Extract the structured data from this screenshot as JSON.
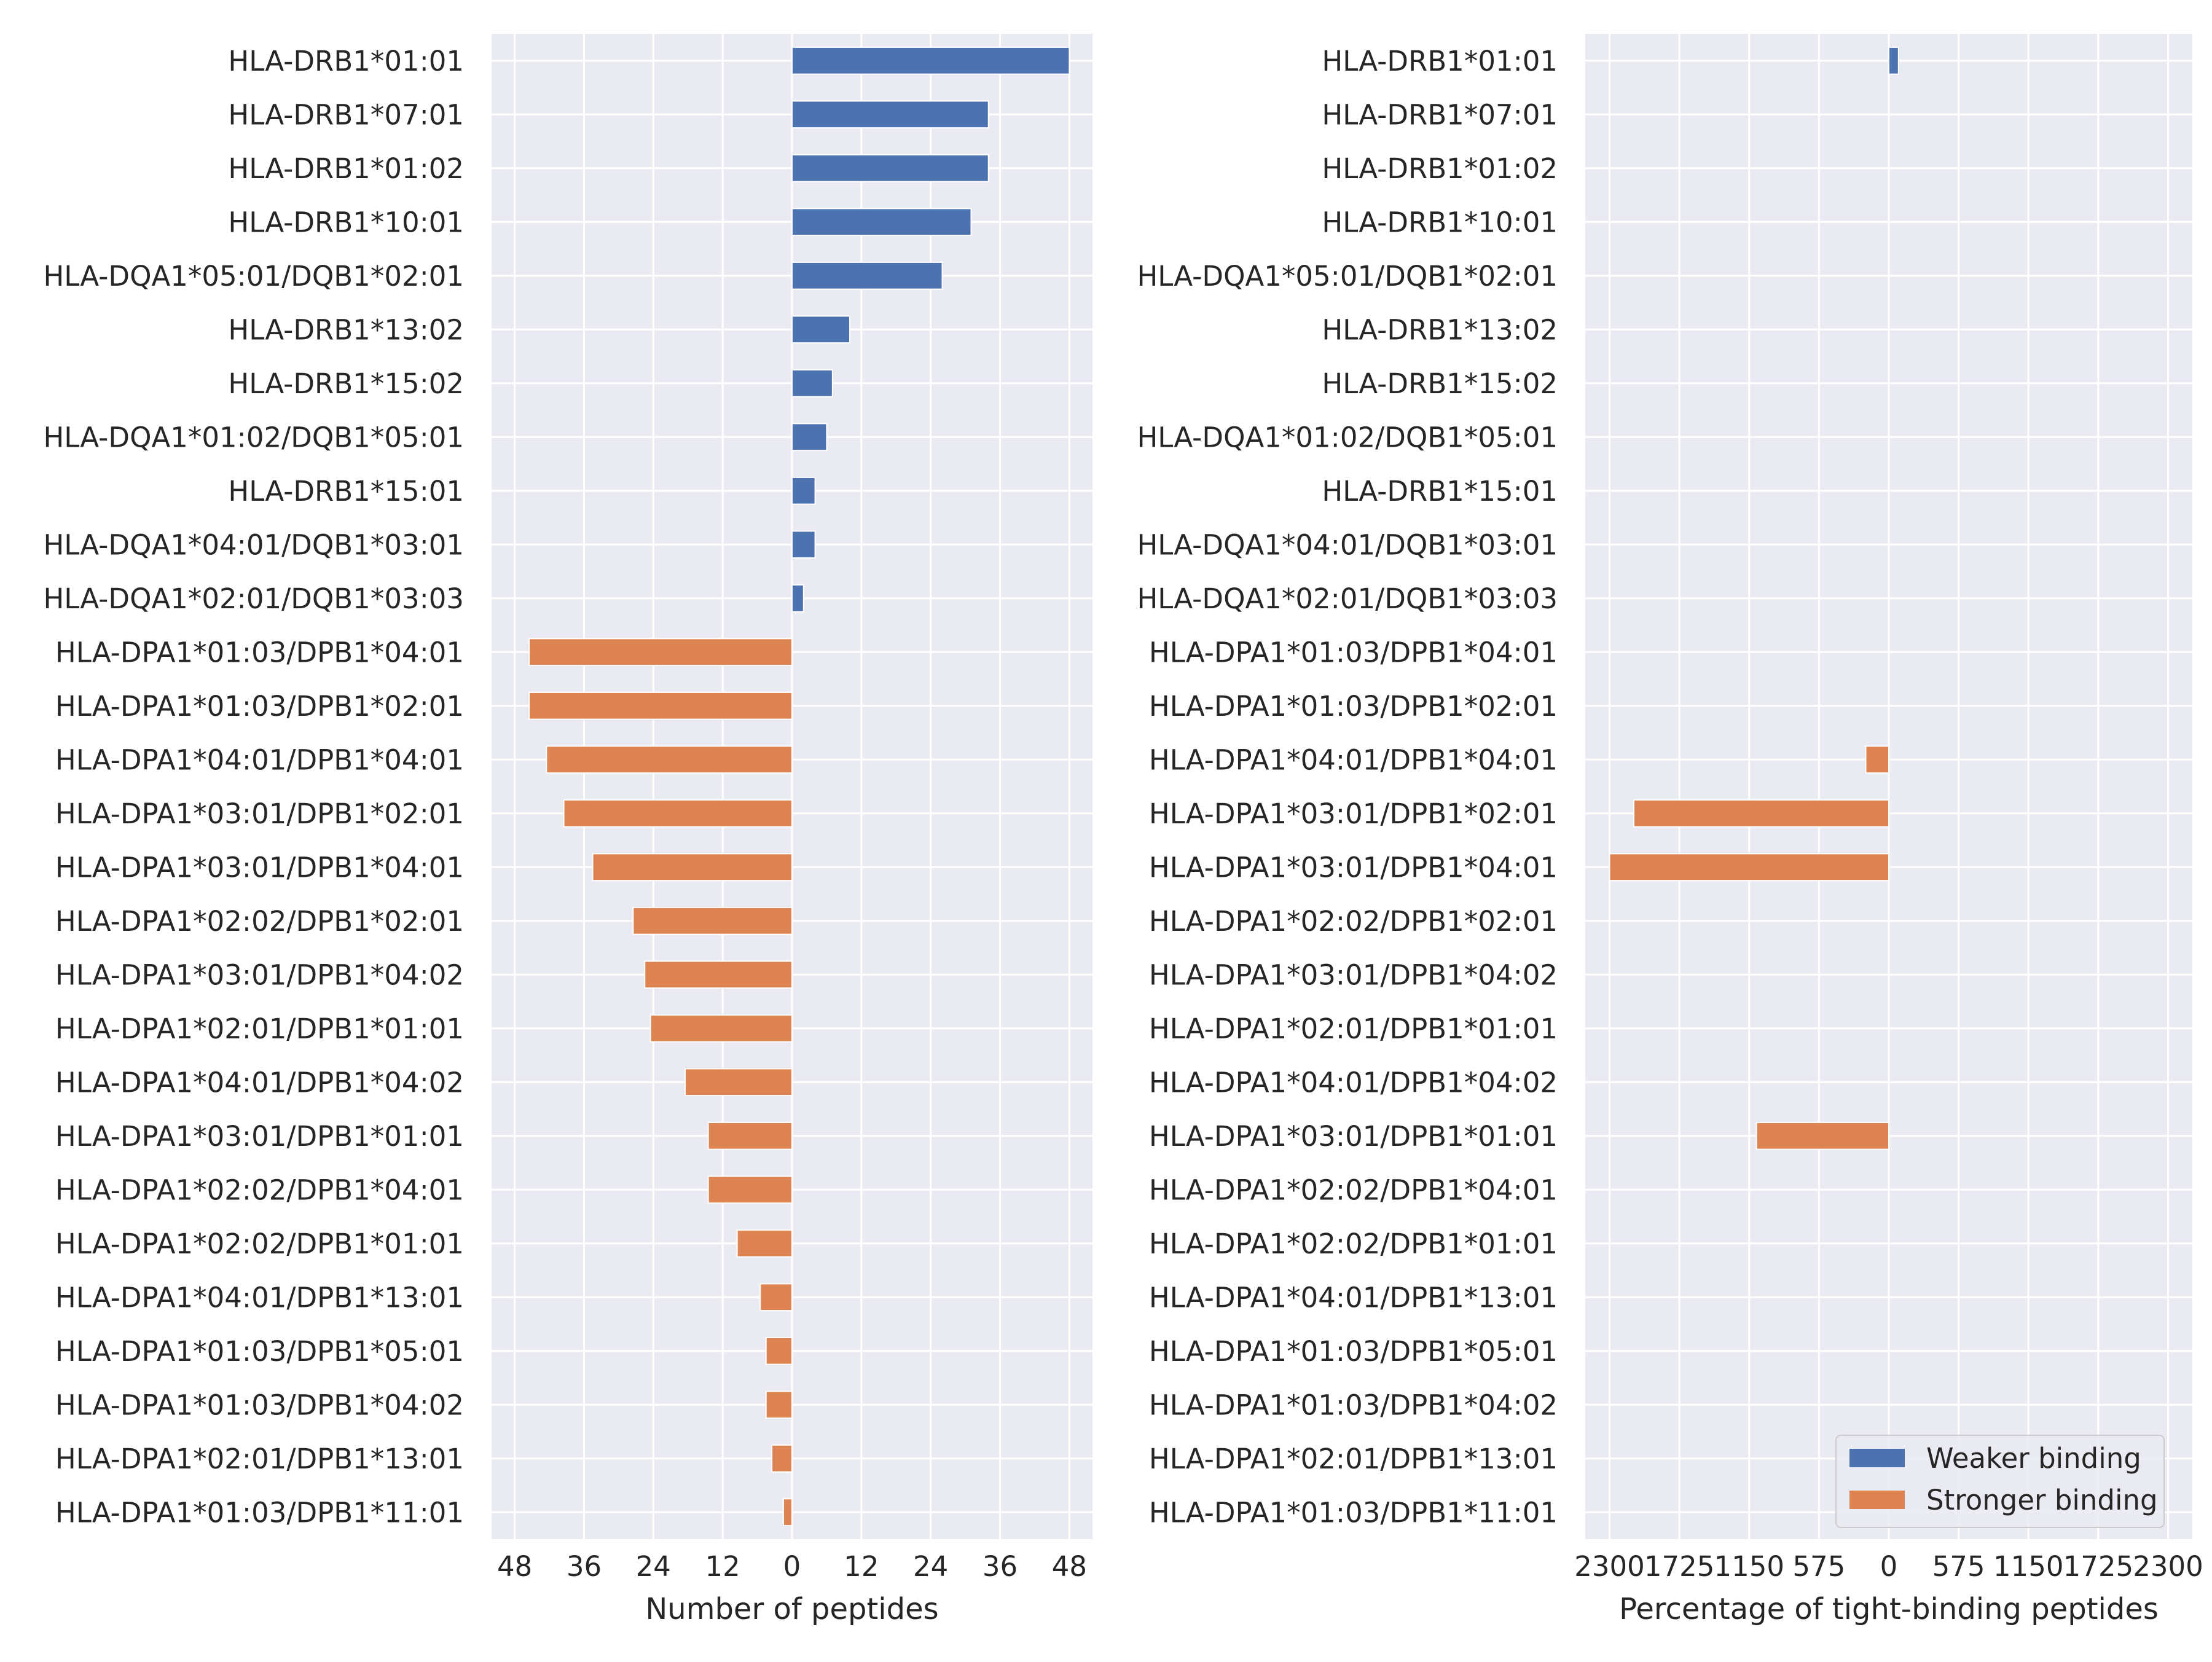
{
  "chart_data": [
    {
      "type": "bar",
      "orientation": "horizontal",
      "title": "",
      "xlabel": "Number of peptides",
      "ylabel": "",
      "xlim": [
        -52,
        52
      ],
      "xticks": [
        -48,
        -36,
        -24,
        -12,
        0,
        12,
        24,
        36,
        48
      ],
      "xtick_labels": [
        "48",
        "36",
        "24",
        "12",
        "0",
        "12",
        "24",
        "36",
        "48"
      ],
      "grid": true,
      "categories": [
        "HLA-DRB1*01:01",
        "HLA-DRB1*07:01",
        "HLA-DRB1*01:02",
        "HLA-DRB1*10:01",
        "HLA-DQA1*05:01/DQB1*02:01",
        "HLA-DRB1*13:02",
        "HLA-DRB1*15:02",
        "HLA-DQA1*01:02/DQB1*05:01",
        "HLA-DRB1*15:01",
        "HLA-DQA1*04:01/DQB1*03:01",
        "HLA-DQA1*02:01/DQB1*03:03",
        "HLA-DPA1*01:03/DPB1*04:01",
        "HLA-DPA1*01:03/DPB1*02:01",
        "HLA-DPA1*04:01/DPB1*04:01",
        "HLA-DPA1*03:01/DPB1*02:01",
        "HLA-DPA1*03:01/DPB1*04:01",
        "HLA-DPA1*02:02/DPB1*02:01",
        "HLA-DPA1*03:01/DPB1*04:02",
        "HLA-DPA1*02:01/DPB1*01:01",
        "HLA-DPA1*04:01/DPB1*04:02",
        "HLA-DPA1*03:01/DPB1*01:01",
        "HLA-DPA1*02:02/DPB1*04:01",
        "HLA-DPA1*02:02/DPB1*01:01",
        "HLA-DPA1*04:01/DPB1*13:01",
        "HLA-DPA1*01:03/DPB1*05:01",
        "HLA-DPA1*01:03/DPB1*04:02",
        "HLA-DPA1*02:01/DPB1*13:01",
        "HLA-DPA1*01:03/DPB1*11:01"
      ],
      "series": [
        {
          "name": "Weaker binding",
          "color": "#4c72b0",
          "values": [
            48,
            34,
            34,
            31,
            26,
            10,
            7,
            6,
            4,
            4,
            2,
            0,
            0,
            0,
            0,
            0,
            0,
            0,
            0,
            0,
            0,
            0,
            0,
            0,
            0,
            0,
            0,
            0
          ]
        },
        {
          "name": "Stronger binding",
          "color": "#dd8452",
          "values": [
            0,
            0,
            0,
            0,
            0,
            0,
            0,
            0,
            0,
            0,
            0,
            -45.5,
            -45.5,
            -42.5,
            -39.5,
            -34.5,
            -27.5,
            -25.5,
            -24.5,
            -18.5,
            -14.5,
            -14.5,
            -9.5,
            -5.5,
            -4.5,
            -4.5,
            -3.5,
            -1.5
          ]
        }
      ]
    },
    {
      "type": "bar",
      "orientation": "horizontal",
      "title": "",
      "xlabel": "Percentage of tight-binding peptides",
      "ylabel": "",
      "xlim": [
        -2500,
        2500
      ],
      "xticks": [
        -2300,
        -1725,
        -1150,
        -575,
        0,
        575,
        1150,
        1725,
        2300
      ],
      "xtick_labels": [
        "2300",
        "1725",
        "1150",
        "575",
        "0",
        "575",
        "1150",
        "1725",
        "2300"
      ],
      "grid": true,
      "legend_position": "lower-right",
      "categories": [
        "HLA-DRB1*01:01",
        "HLA-DRB1*07:01",
        "HLA-DRB1*01:02",
        "HLA-DRB1*10:01",
        "HLA-DQA1*05:01/DQB1*02:01",
        "HLA-DRB1*13:02",
        "HLA-DRB1*15:02",
        "HLA-DQA1*01:02/DQB1*05:01",
        "HLA-DRB1*15:01",
        "HLA-DQA1*04:01/DQB1*03:01",
        "HLA-DQA1*02:01/DQB1*03:03",
        "HLA-DPA1*01:03/DPB1*04:01",
        "HLA-DPA1*01:03/DPB1*02:01",
        "HLA-DPA1*04:01/DPB1*04:01",
        "HLA-DPA1*03:01/DPB1*02:01",
        "HLA-DPA1*03:01/DPB1*04:01",
        "HLA-DPA1*02:02/DPB1*02:01",
        "HLA-DPA1*03:01/DPB1*04:02",
        "HLA-DPA1*02:01/DPB1*01:01",
        "HLA-DPA1*04:01/DPB1*04:02",
        "HLA-DPA1*03:01/DPB1*01:01",
        "HLA-DPA1*02:02/DPB1*04:01",
        "HLA-DPA1*02:02/DPB1*01:01",
        "HLA-DPA1*04:01/DPB1*13:01",
        "HLA-DPA1*01:03/DPB1*05:01",
        "HLA-DPA1*01:03/DPB1*04:02",
        "HLA-DPA1*02:01/DPB1*13:01",
        "HLA-DPA1*01:03/DPB1*11:01"
      ],
      "series": [
        {
          "name": "Weaker binding",
          "color": "#4c72b0",
          "values": [
            80,
            0,
            0,
            0,
            0,
            0,
            0,
            0,
            0,
            0,
            0,
            0,
            0,
            0,
            0,
            0,
            0,
            0,
            0,
            0,
            0,
            0,
            0,
            0,
            0,
            0,
            0,
            0
          ]
        },
        {
          "name": "Stronger binding",
          "color": "#dd8452",
          "values": [
            0,
            0,
            0,
            0,
            0,
            0,
            0,
            0,
            0,
            0,
            0,
            0,
            0,
            -190,
            -2100,
            -2300,
            0,
            0,
            0,
            0,
            -1090,
            0,
            0,
            0,
            0,
            0,
            0,
            0
          ]
        }
      ]
    }
  ]
}
